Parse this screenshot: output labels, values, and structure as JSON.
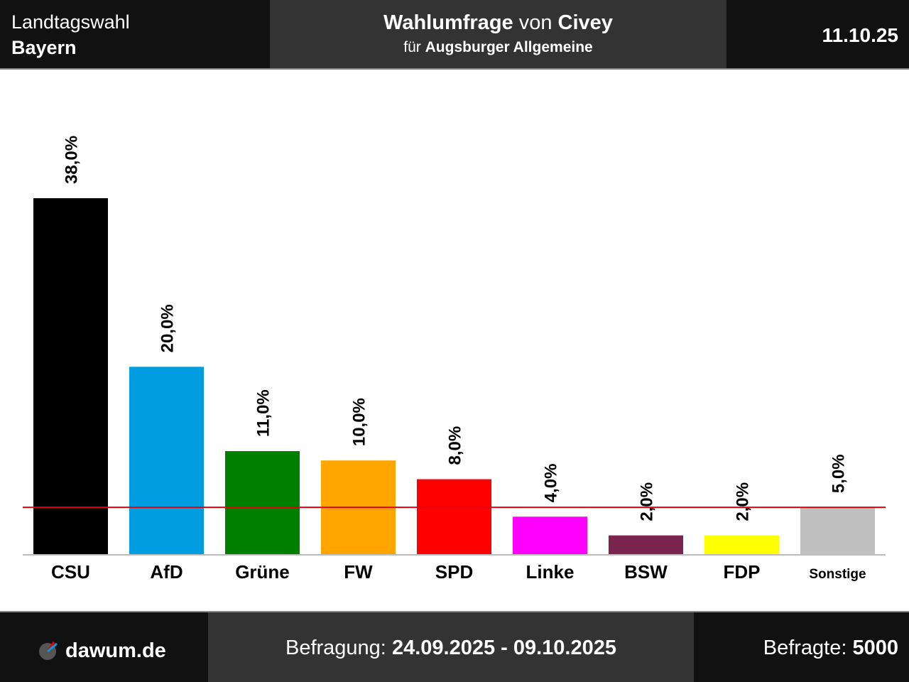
{
  "header": {
    "region_label": "Landtagswahl",
    "region": "Bayern",
    "title": [
      "Wahlumfrage",
      "von",
      "Civey"
    ],
    "subtitle": [
      "für",
      "Augsburger Allgemeine"
    ],
    "date": "11.10.25"
  },
  "chart_data": {
    "type": "bar",
    "categories": [
      "CSU",
      "AfD",
      "Grüne",
      "FW",
      "SPD",
      "Linke",
      "BSW",
      "FDP",
      "Sonstige"
    ],
    "values": [
      38,
      20,
      11,
      10,
      8,
      4,
      2,
      2,
      5
    ],
    "value_labels": [
      "38,0%",
      "20,0%",
      "11,0%",
      "10,0%",
      "8,0%",
      "4,0%",
      "2,0%",
      "2,0%",
      "5,0%"
    ],
    "colors": [
      "#000000",
      "#009ee0",
      "#008000",
      "#ffa500",
      "#ff0000",
      "#ff00ff",
      "#7b2450",
      "#ffff00",
      "#c0c0c0"
    ],
    "threshold": 5,
    "threshold_color": "#e3000f"
  },
  "footer": {
    "site": "dawum.de",
    "period_label": "Befragung:",
    "period": "24.09.2025 - 09.10.2025",
    "sample_label": "Befragte:",
    "sample": "5000"
  }
}
